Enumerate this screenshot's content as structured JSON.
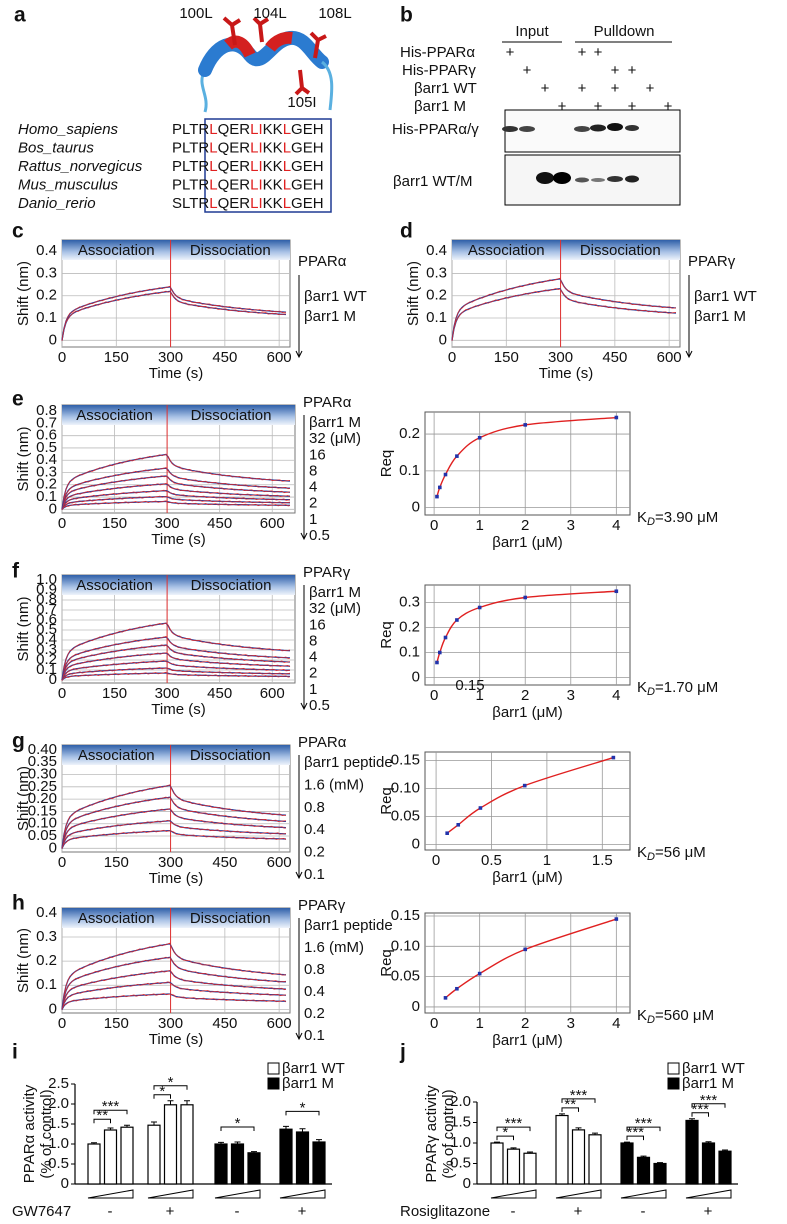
{
  "a": {
    "label": "a",
    "residues": [
      "100L",
      "104L",
      "108L",
      "105I"
    ],
    "species": [
      "Homo_sapiens",
      "Bos_taurus",
      "Rattus_norvegicus",
      "Mus_musculus",
      "Danio_rerio"
    ],
    "sequences": [
      "PLTRLQERLIKKLGEH",
      "PLTRLQERLIKKLGEH",
      "PLTRLQERLIKKLGEH",
      "PLTRLQERLIKKLGEH",
      "SLTRLQERLIKKLGEH"
    ]
  },
  "b": {
    "label": "b",
    "groups": [
      "Input",
      "Pulldown"
    ],
    "rows": [
      {
        "name": "His-PPARα",
        "signs": [
          "+",
          "+",
          "+"
        ]
      },
      {
        "name": "His-PPARγ",
        "signs": [
          "+",
          "+",
          "+"
        ]
      },
      {
        "name": "βarr1 WT",
        "signs": [
          "+",
          "+",
          "+",
          "+"
        ]
      },
      {
        "name": "βarr1 M",
        "signs": [
          "+",
          "+",
          "+",
          "+"
        ]
      }
    ],
    "blots": [
      "His-PPARα/γ",
      "βarr1 WT/M"
    ]
  },
  "sensorgrams": {
    "c": {
      "label": "c",
      "protein": "PPARα",
      "legend": [
        "βarr1 WT",
        "βarr1 M"
      ],
      "phases": [
        "Association",
        "Dissociation"
      ],
      "ylabel": "Shift (nm)",
      "xlabel": "Time (s)",
      "xlim": [
        0,
        630
      ],
      "ylim": [
        -0.03,
        0.45
      ],
      "yticks": [
        0,
        0.1,
        0.2,
        0.3,
        0.4
      ],
      "xticks": [
        0,
        150,
        300,
        450,
        600
      ]
    },
    "d": {
      "label": "d",
      "protein": "PPARγ",
      "legend": [
        "βarr1 WT",
        "βarr1 M"
      ],
      "phases": [
        "Association",
        "Dissociation"
      ],
      "ylabel": "Shift (nm)",
      "xlabel": "Time (s)",
      "xlim": [
        0,
        630
      ],
      "ylim": [
        -0.03,
        0.45
      ],
      "yticks": [
        0,
        0.1,
        0.2,
        0.3,
        0.4
      ],
      "xticks": [
        0,
        150,
        300,
        450,
        600
      ]
    },
    "e": {
      "label": "e",
      "protein": "PPARα",
      "legend": [
        "βarr1 M",
        "32 (μM)",
        "16",
        "8",
        "4",
        "2",
        "1",
        "0.5"
      ],
      "phases": [
        "Association",
        "Dissociation"
      ],
      "ylabel": "Shift (nm)",
      "xlabel": "Time (s)",
      "xlim": [
        0,
        665
      ],
      "ylim": [
        -0.03,
        0.85
      ],
      "yticks": [
        0,
        0.1,
        0.2,
        0.3,
        0.4,
        0.5,
        0.6,
        0.7,
        0.8
      ],
      "xticks": [
        0,
        150,
        300,
        450,
        600
      ]
    },
    "f": {
      "label": "f",
      "protein": "PPARγ",
      "legend": [
        "βarr1 M",
        "32 (μM)",
        "16",
        "8",
        "4",
        "2",
        "1",
        "0.5"
      ],
      "phases": [
        "Association",
        "Dissociation"
      ],
      "ylabel": "Shift (nm)",
      "xlabel": "Time (s)",
      "xlim": [
        0,
        665
      ],
      "ylim": [
        -0.03,
        1.05
      ],
      "yticks": [
        0,
        0.1,
        0.2,
        0.3,
        0.4,
        0.5,
        0.6,
        0.7,
        0.8,
        0.9,
        {
          "value": 1,
          "label": "1.0"
        }
      ],
      "xticks": [
        0,
        150,
        300,
        450,
        600
      ]
    },
    "g": {
      "label": "g",
      "protein": "PPARα",
      "legend": [
        "βarr1 peptide",
        "1.6 (mM)",
        "0.8",
        "0.4",
        "0.2",
        "0.1"
      ],
      "phases": [
        "Association",
        "Dissociation"
      ],
      "ylabel": "Shift (nm)",
      "xlabel": "Time (s)",
      "xlim": [
        0,
        630
      ],
      "ylim": [
        -0.015,
        0.42
      ],
      "yticks": [
        0,
        0.05,
        {
          "value": 0.1,
          "label": "0.10"
        },
        0.15,
        {
          "value": 0.2,
          "label": "0.20"
        },
        0.25,
        {
          "value": 0.3,
          "label": "0.30"
        },
        0.35,
        {
          "value": 0.4,
          "label": "0.40"
        }
      ],
      "xticks": [
        0,
        150,
        300,
        450,
        600
      ]
    },
    "h": {
      "label": "h",
      "protein": "PPARγ",
      "legend": [
        "βarr1 peptide",
        "1.6 (mM)",
        "0.8",
        "0.4",
        "0.2",
        "0.1"
      ],
      "phases": [
        "Association",
        "Dissociation"
      ],
      "ylabel": "Shift (nm)",
      "xlabel": "Time (s)",
      "xlim": [
        0,
        630
      ],
      "ylim": [
        -0.015,
        0.42
      ],
      "yticks": [
        0,
        0.1,
        0.2,
        0.3,
        0.4
      ],
      "xticks": [
        0,
        150,
        300,
        450,
        600
      ]
    }
  },
  "req": {
    "e": {
      "ylabel": "Req",
      "xlabel": "βarr1 (μM)",
      "kd": {
        "k": "K",
        "sub": "D",
        "rest": "=3.90 μM"
      },
      "xlim": [
        -0.2,
        4.3
      ],
      "ylim": [
        -0.02,
        0.26
      ],
      "xticks": [
        0,
        1,
        2,
        3,
        4
      ],
      "yticks": [
        0,
        0.1,
        0.2
      ],
      "x": [
        0.0625,
        0.125,
        0.25,
        0.5,
        1,
        2,
        4
      ],
      "y": [
        0.03,
        0.055,
        0.09,
        0.14,
        0.19,
        0.225,
        0.245
      ]
    },
    "f": {
      "ylabel": "Req",
      "xlabel": "βarr1 (μM)",
      "kd": {
        "k": "K",
        "sub": "D",
        "rest": "=1.70 μM"
      },
      "note": "0.15",
      "xlim": [
        -0.2,
        4.3
      ],
      "ylim": [
        -0.03,
        0.37
      ],
      "xticks": [
        0,
        1,
        2,
        3,
        4
      ],
      "yticks": [
        0,
        0.1,
        0.2,
        0.3
      ],
      "x": [
        0.0625,
        0.125,
        0.25,
        0.5,
        1,
        2,
        4
      ],
      "y": [
        0.06,
        0.1,
        0.16,
        0.23,
        0.28,
        0.32,
        0.345
      ]
    },
    "g": {
      "ylabel": "Req",
      "xlabel": "βarr1 (μM)",
      "kd": {
        "k": "K",
        "sub": "D",
        "rest": "=56 μM"
      },
      "xlim": [
        -0.1,
        1.75
      ],
      "ylim": [
        -0.01,
        0.165
      ],
      "xticks": [
        0,
        0.5,
        1,
        1.5
      ],
      "yticks": [
        0,
        0.05,
        {
          "value": 0.1,
          "label": "0.10"
        },
        0.15
      ],
      "x": [
        0.1,
        0.2,
        0.4,
        0.8,
        1.6
      ],
      "y": [
        0.02,
        0.035,
        0.065,
        0.105,
        0.155
      ]
    },
    "h": {
      "ylabel": "Req",
      "xlabel": "βarr1 (μM)",
      "kd": {
        "k": "K",
        "sub": "D",
        "rest": "=560 μM"
      },
      "xlim": [
        -0.2,
        4.3
      ],
      "ylim": [
        -0.01,
        0.155
      ],
      "xticks": [
        0,
        1,
        2,
        3,
        4
      ],
      "yticks": [
        0,
        0.05,
        {
          "value": 0.1,
          "label": "0.10"
        },
        0.15
      ],
      "x": [
        0.25,
        0.5,
        1,
        2,
        4
      ],
      "y": [
        0.015,
        0.03,
        0.055,
        0.095,
        0.145
      ]
    }
  },
  "bars": {
    "i": {
      "label": "i",
      "ylabel": [
        "PPARα activity",
        "(% of control)"
      ],
      "legend": [
        "βarr1 WT",
        "βarr1 M"
      ],
      "treatment": "GW7647",
      "ylim": [
        0,
        2.5
      ],
      "yticks": [
        0,
        0.5,
        {
          "value": 1,
          "label": "1.0"
        },
        1.5,
        {
          "value": 2,
          "label": "2.0"
        },
        2.5
      ],
      "groups": [
        {
          "sign": "-",
          "values": [
            1.0,
            1.35,
            1.42
          ],
          "errors": [
            0.03,
            0.05,
            0.05
          ],
          "sig": {
            "1": "**",
            "2": "***"
          }
        },
        {
          "sign": "+",
          "values": [
            1.47,
            1.98,
            1.98
          ],
          "errors": [
            0.08,
            0.1,
            0.1
          ],
          "sig": {
            "1": "*",
            "2": "*"
          }
        },
        {
          "sign": "-",
          "values": [
            1.0,
            1.0,
            0.78
          ],
          "errors": [
            0.04,
            0.05,
            0.03
          ],
          "sig": {
            "2": "*"
          }
        },
        {
          "sign": "+",
          "values": [
            1.37,
            1.3,
            1.05
          ],
          "errors": [
            0.07,
            0.08,
            0.06
          ],
          "sig": {
            "2": "*"
          }
        }
      ]
    },
    "j": {
      "label": "j",
      "ylabel": [
        "PPARγ activity",
        "(% of control)"
      ],
      "legend": [
        "βarr1 WT",
        "βarr1 M"
      ],
      "treatment": "Rosiglitazone",
      "ylim": [
        0,
        2.0
      ],
      "yticks": [
        0,
        0.5,
        {
          "value": 1,
          "label": "1.0"
        },
        1.5,
        {
          "value": 2,
          "label": "2.0"
        }
      ],
      "groups": [
        {
          "sign": "-",
          "values": [
            1.0,
            0.85,
            0.75
          ],
          "errors": [
            0.02,
            0.03,
            0.03
          ],
          "sig": {
            "1": "*",
            "2": "***"
          }
        },
        {
          "sign": "+",
          "values": [
            1.67,
            1.32,
            1.2
          ],
          "errors": [
            0.04,
            0.05,
            0.04
          ],
          "sig": {
            "1": "**",
            "2": "***"
          }
        },
        {
          "sign": "-",
          "values": [
            1.0,
            0.65,
            0.5
          ],
          "errors": [
            0.02,
            0.03,
            0.02
          ],
          "sig": {
            "1": "***",
            "2": "***"
          }
        },
        {
          "sign": "+",
          "values": [
            1.55,
            1.0,
            0.8
          ],
          "errors": [
            0.04,
            0.03,
            0.03
          ],
          "sig": {
            "1": "***",
            "2": "***"
          }
        }
      ]
    }
  }
}
